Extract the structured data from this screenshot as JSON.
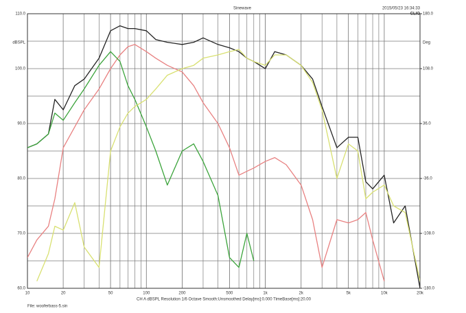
{
  "chart_data": {
    "type": "line",
    "title": "Sinewave",
    "timestamp": "2015/05/23 16:34:33",
    "brand": "CLIO",
    "y_label": "dBSPL",
    "y2_label": "Deg",
    "caption": "CH A   dBSPL   Resolution 1/6 Octave   Smooth:Unsmoothed   Delay[ms]:0.000   TimeBase[ms]:20.00",
    "file": "File: wooferbass-5.sin",
    "xscale": "log",
    "grid": true,
    "xlim": [
      10,
      20000
    ],
    "xticks": [
      10,
      20,
      50,
      100,
      200,
      500,
      {
        "value": 1000,
        "label": "1k"
      },
      {
        "value": 2000,
        "label": "2k"
      },
      {
        "value": 5000,
        "label": "5k"
      },
      {
        "value": 10000,
        "label": "10k"
      },
      {
        "value": 20000,
        "label": "20k"
      }
    ],
    "ylim": [
      60,
      110
    ],
    "yticks": [
      {
        "value": 60,
        "label": "60.0"
      },
      {
        "value": 70,
        "label": "70.0"
      },
      {
        "value": 80,
        "label": "80.0"
      },
      {
        "value": 90,
        "label": "90.0"
      },
      {
        "value": 100,
        "label": "100.0"
      },
      {
        "value": 110,
        "label": "110.0"
      }
    ],
    "y2lim": [
      -180,
      180
    ],
    "y2ticks": [
      {
        "value": -180,
        "label": "-180.0"
      },
      {
        "value": -108,
        "label": "-108.0"
      },
      {
        "value": -36,
        "label": "-36.0"
      },
      {
        "value": 36,
        "label": "36.0"
      },
      {
        "value": 108,
        "label": "108.0"
      },
      {
        "value": 180,
        "label": "180.0"
      }
    ],
    "x": [
      10,
      12,
      15,
      17,
      20,
      25,
      30,
      40,
      50,
      60,
      70,
      80,
      100,
      120,
      150,
      200,
      250,
      300,
      400,
      500,
      600,
      700,
      800,
      1000,
      1200,
      1500,
      2000,
      2500,
      3000,
      4000,
      5000,
      6000,
      7000,
      8000,
      10000,
      12000,
      15000,
      20000
    ],
    "series": [
      {
        "color": "#222222",
        "values": [
          85.6,
          86.3,
          88.1,
          94.4,
          92.5,
          96.9,
          98.1,
          101.9,
          106.9,
          107.8,
          107.3,
          107.3,
          106.9,
          105.3,
          104.8,
          104.4,
          104.8,
          105.6,
          104.4,
          103.8,
          103.1,
          101.9,
          101.3,
          100,
          103.1,
          102.5,
          100.6,
          98.1,
          93.1,
          85.6,
          87.5,
          87.5,
          79.4,
          78.1,
          80.6,
          71.9,
          75,
          60
        ]
      },
      {
        "color": "#e88080",
        "values": [
          65.6,
          68.8,
          71.3,
          76.3,
          85.6,
          89.4,
          92.5,
          96.3,
          100,
          102.5,
          104,
          104.4,
          103.1,
          101.9,
          100.6,
          99.4,
          96.9,
          93.8,
          90,
          85.6,
          80.6,
          81.3,
          81.9,
          83.1,
          83.8,
          82.5,
          78.8,
          72.5,
          63.8,
          72.5,
          71.9,
          72.5,
          73.8,
          68.8,
          61.3,
          null,
          null,
          null
        ]
      },
      {
        "color": "#3aa33a",
        "values": [
          85.6,
          86.3,
          88.1,
          91.9,
          90.6,
          93.8,
          96.3,
          100.6,
          103.1,
          101.3,
          96.9,
          94.4,
          89.4,
          85,
          78.8,
          85,
          86.3,
          83.1,
          76.9,
          65.6,
          63.8,
          70,
          65,
          null,
          null,
          null,
          null,
          null,
          null,
          null,
          null,
          null,
          null,
          null,
          null,
          null,
          null,
          null
        ]
      },
      {
        "color": "#d8e070",
        "values": [
          null,
          61.3,
          66.3,
          71.3,
          70.6,
          75.6,
          67.5,
          63.8,
          85,
          89.4,
          91.9,
          93.1,
          94.4,
          96.3,
          98.8,
          100,
          100.6,
          101.9,
          102.5,
          103.1,
          103.5,
          101.9,
          101.3,
          100.6,
          102.5,
          102.5,
          100.6,
          97.5,
          92.5,
          80,
          86.3,
          85,
          76.3,
          77.5,
          78.8,
          75,
          73.8,
          61.3
        ]
      }
    ]
  }
}
